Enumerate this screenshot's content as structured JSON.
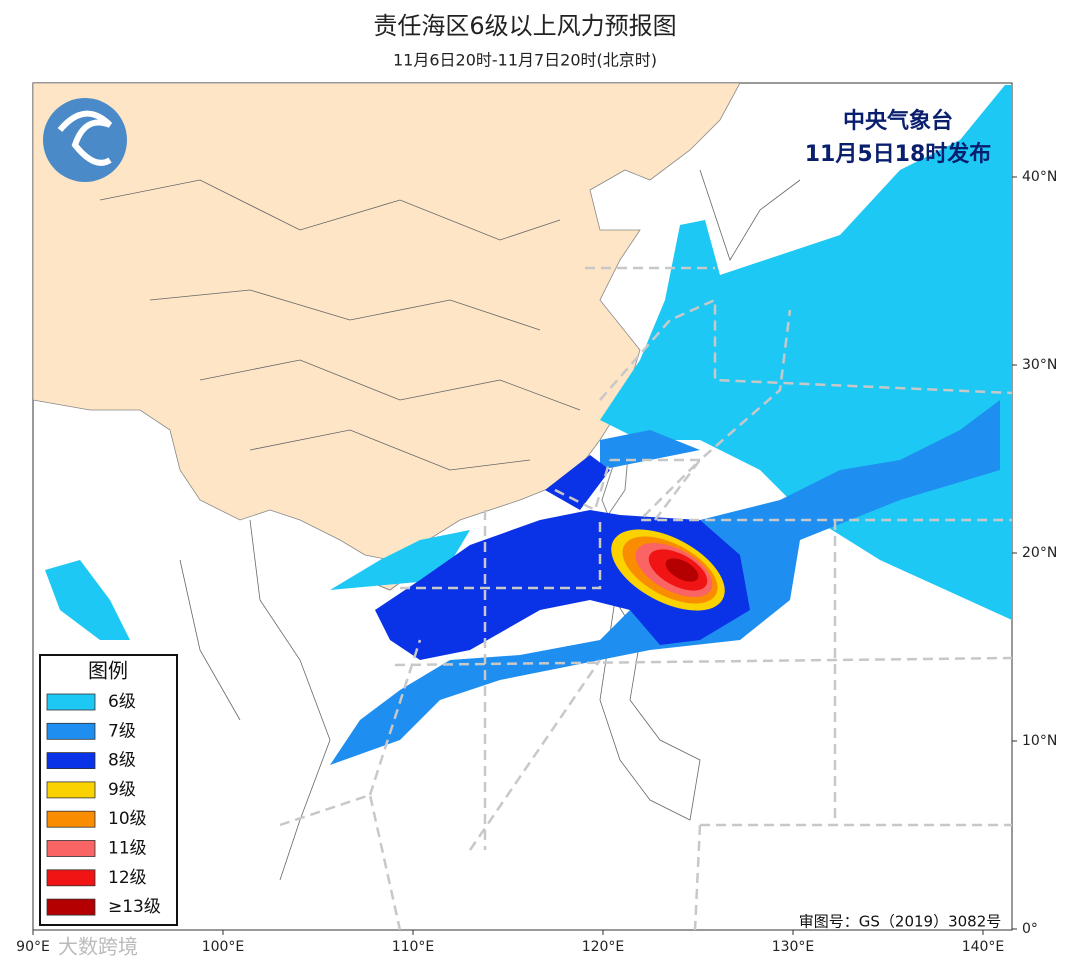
{
  "header": {
    "title": "责任海区6级以上风力预报图",
    "subtitle": "11月6日20时-11月7日20时(北京时)"
  },
  "publisher": {
    "lines": [
      "中央气象台",
      "11月5日18时发布"
    ]
  },
  "legend": {
    "title": "图例",
    "items": [
      {
        "label": "6级",
        "color": "#1ec8f5"
      },
      {
        "label": "7级",
        "color": "#1e8ef0"
      },
      {
        "label": "8级",
        "color": "#0a32e6"
      },
      {
        "label": "9级",
        "color": "#fad200"
      },
      {
        "label": "10级",
        "color": "#fa8c00"
      },
      {
        "label": "11级",
        "color": "#fa6464"
      },
      {
        "label": "12级",
        "color": "#f01414"
      },
      {
        "label": "≥13级",
        "color": "#b40000"
      }
    ]
  },
  "axes": {
    "lon_labels": [
      "90°E",
      "100°E",
      "110°E",
      "120°E",
      "130°E",
      "140°E"
    ],
    "lat_labels": [
      "40°N",
      "30°N",
      "20°N",
      "10°N",
      "0°"
    ]
  },
  "footer": {
    "approval": "审图号：GS（2019）3082号"
  },
  "watermark": "大数跨境"
}
